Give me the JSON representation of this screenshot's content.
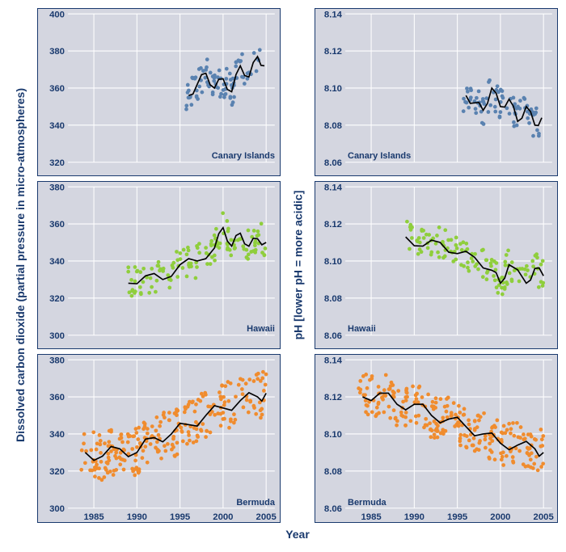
{
  "axis_labels": {
    "left_y": "Dissolved carbon dioxide (partial pressure in micro-atmospheres)",
    "right_y": "pH [lower pH = more acidic]",
    "x": "Year"
  },
  "colors": {
    "text": "#1a3a6e",
    "panel_bg": "#d4d6e0",
    "grid": "#ffffff",
    "trend": "#000000",
    "canary": "#5a82b0",
    "hawaii": "#8fce3c",
    "bermuda": "#f08c2e"
  },
  "x_axis": {
    "min": 1982,
    "max": 2006,
    "ticks": [
      1985,
      1990,
      1995,
      2000,
      2005
    ]
  },
  "panels": [
    {
      "id": "co2-canary",
      "col": 2,
      "row": 1,
      "label": "Canary Islands",
      "label_side": "right",
      "color_key": "canary",
      "ymin": 320,
      "ymax": 400,
      "yticks": [
        320,
        340,
        360,
        380,
        400
      ],
      "decimals": 0,
      "scatter_seed": 101,
      "x_start": 1995.5,
      "x_end": 2004.5,
      "n": 90,
      "noise": 9,
      "trend": [
        [
          1996,
          356
        ],
        [
          1997,
          362
        ],
        [
          1998,
          368
        ],
        [
          1999,
          360
        ],
        [
          2000,
          365
        ],
        [
          2001,
          358
        ],
        [
          2002,
          372
        ],
        [
          2003,
          366
        ],
        [
          2004,
          377
        ],
        [
          2004.8,
          372
        ]
      ]
    },
    {
      "id": "ph-canary",
      "col": 4,
      "row": 1,
      "label": "Canary Islands",
      "label_side": "left",
      "color_key": "canary",
      "ymin": 8.06,
      "ymax": 8.14,
      "yticks": [
        8.06,
        8.08,
        8.1,
        8.12,
        8.14
      ],
      "decimals": 2,
      "scatter_seed": 102,
      "x_start": 1995.5,
      "x_end": 2004.5,
      "n": 80,
      "noise": 0.009,
      "trend": [
        [
          1996,
          8.096
        ],
        [
          1997,
          8.092
        ],
        [
          1998,
          8.088
        ],
        [
          1999,
          8.1
        ],
        [
          2000,
          8.09
        ],
        [
          2001,
          8.094
        ],
        [
          2002,
          8.082
        ],
        [
          2003,
          8.09
        ],
        [
          2004,
          8.08
        ],
        [
          2004.8,
          8.084
        ]
      ]
    },
    {
      "id": "co2-hawaii",
      "col": 2,
      "row": 2,
      "label": "Hawaii",
      "label_side": "right",
      "color_key": "hawaii",
      "ymin": 300,
      "ymax": 380,
      "yticks": [
        300,
        320,
        340,
        360,
        380
      ],
      "decimals": 0,
      "scatter_seed": 201,
      "x_start": 1989,
      "x_end": 2005,
      "n": 130,
      "noise": 9,
      "trend": [
        [
          1989,
          328
        ],
        [
          1991,
          332
        ],
        [
          1993,
          330
        ],
        [
          1995,
          338
        ],
        [
          1997,
          340
        ],
        [
          1999,
          347
        ],
        [
          2000,
          358
        ],
        [
          2001,
          348
        ],
        [
          2002,
          355
        ],
        [
          2003,
          348
        ],
        [
          2004,
          352
        ],
        [
          2005,
          350
        ]
      ]
    },
    {
      "id": "ph-hawaii",
      "col": 4,
      "row": 2,
      "label": "Hawaii",
      "label_side": "left",
      "color_key": "hawaii",
      "ymin": 8.06,
      "ymax": 8.14,
      "yticks": [
        8.06,
        8.08,
        8.1,
        8.12,
        8.14
      ],
      "decimals": 2,
      "scatter_seed": 202,
      "x_start": 1989,
      "x_end": 2005,
      "n": 130,
      "noise": 0.009,
      "trend": [
        [
          1989,
          8.113
        ],
        [
          1991,
          8.108
        ],
        [
          1993,
          8.11
        ],
        [
          1995,
          8.104
        ],
        [
          1997,
          8.102
        ],
        [
          1999,
          8.095
        ],
        [
          2000,
          8.088
        ],
        [
          2001,
          8.098
        ],
        [
          2003,
          8.088
        ],
        [
          2004,
          8.096
        ],
        [
          2005,
          8.092
        ]
      ]
    },
    {
      "id": "co2-bermuda",
      "col": 2,
      "row": 3,
      "label": "Bermuda",
      "label_side": "right",
      "color_key": "bermuda",
      "ymin": 300,
      "ymax": 380,
      "yticks": [
        300,
        320,
        340,
        360,
        380
      ],
      "decimals": 0,
      "scatter_seed": 301,
      "x_start": 1983.5,
      "x_end": 2005,
      "n": 260,
      "noise": 13,
      "trend": [
        [
          1984,
          330
        ],
        [
          1986,
          328
        ],
        [
          1988,
          332
        ],
        [
          1990,
          330
        ],
        [
          1992,
          338
        ],
        [
          1994,
          340
        ],
        [
          1996,
          345
        ],
        [
          1998,
          350
        ],
        [
          2000,
          354
        ],
        [
          2002,
          358
        ],
        [
          2004,
          360
        ],
        [
          2005,
          362
        ]
      ]
    },
    {
      "id": "ph-bermuda",
      "col": 4,
      "row": 3,
      "label": "Bermuda",
      "label_side": "left",
      "color_key": "bermuda",
      "ymin": 8.06,
      "ymax": 8.14,
      "yticks": [
        8.06,
        8.08,
        8.1,
        8.12,
        8.14
      ],
      "decimals": 2,
      "scatter_seed": 302,
      "x_start": 1983.5,
      "x_end": 2005,
      "n": 260,
      "noise": 0.012,
      "trend": [
        [
          1984,
          8.12
        ],
        [
          1986,
          8.122
        ],
        [
          1988,
          8.116
        ],
        [
          1990,
          8.116
        ],
        [
          1992,
          8.11
        ],
        [
          1994,
          8.108
        ],
        [
          1996,
          8.104
        ],
        [
          1998,
          8.1
        ],
        [
          2000,
          8.095
        ],
        [
          2002,
          8.094
        ],
        [
          2004,
          8.092
        ],
        [
          2005,
          8.09
        ]
      ]
    }
  ]
}
